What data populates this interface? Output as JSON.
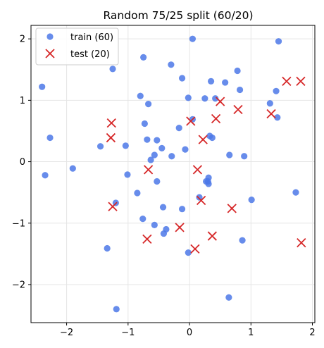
{
  "chart_data": {
    "type": "scatter",
    "title": "Random 75/25 split  (60/20)",
    "xlabel": "",
    "ylabel": "",
    "xlim": [
      -2.58,
      2.04
    ],
    "ylim": [
      -2.62,
      2.22
    ],
    "xticks": [
      -2,
      -1,
      0,
      1,
      2
    ],
    "yticks": [
      -2,
      -1,
      0,
      1,
      2
    ],
    "grid": true,
    "legend_position": "top-left",
    "series": [
      {
        "name": "train (60)",
        "marker": "circle",
        "color": "#4c78e8",
        "points": [
          [
            0.05,
            2.0
          ],
          [
            -0.3,
            1.58
          ],
          [
            -0.75,
            1.7
          ],
          [
            -1.25,
            1.51
          ],
          [
            1.45,
            1.96
          ],
          [
            -2.4,
            1.22
          ],
          [
            0.35,
            1.31
          ],
          [
            0.58,
            1.29
          ],
          [
            0.78,
            1.48
          ],
          [
            1.41,
            1.15
          ],
          [
            -0.12,
            1.36
          ],
          [
            -0.8,
            1.07
          ],
          [
            -0.67,
            0.94
          ],
          [
            -0.02,
            1.04
          ],
          [
            0.25,
            1.03
          ],
          [
            0.82,
            1.17
          ],
          [
            0.42,
            1.03
          ],
          [
            1.31,
            0.95
          ],
          [
            1.43,
            0.72
          ],
          [
            -2.27,
            0.39
          ],
          [
            -0.73,
            0.62
          ],
          [
            -0.17,
            0.55
          ],
          [
            0.05,
            0.69
          ],
          [
            0.33,
            0.42
          ],
          [
            0.37,
            0.39
          ],
          [
            -0.69,
            0.36
          ],
          [
            -0.53,
            0.35
          ],
          [
            -1.45,
            0.25
          ],
          [
            -1.04,
            0.26
          ],
          [
            -0.45,
            0.22
          ],
          [
            -0.07,
            0.2
          ],
          [
            -0.57,
            0.11
          ],
          [
            -0.63,
            0.03
          ],
          [
            -0.29,
            0.09
          ],
          [
            0.65,
            0.11
          ],
          [
            0.89,
            0.09
          ],
          [
            -1.9,
            -0.11
          ],
          [
            -2.35,
            -0.22
          ],
          [
            -1.01,
            -0.21
          ],
          [
            0.31,
            -0.26
          ],
          [
            0.27,
            -0.32
          ],
          [
            -0.53,
            -0.32
          ],
          [
            0.31,
            -0.36
          ],
          [
            1.73,
            -0.5
          ],
          [
            -0.85,
            -0.51
          ],
          [
            1.01,
            -0.62
          ],
          [
            0.16,
            -0.58
          ],
          [
            -1.2,
            -0.67
          ],
          [
            -0.12,
            -0.77
          ],
          [
            -0.43,
            -0.74
          ],
          [
            -0.76,
            -0.93
          ],
          [
            -0.57,
            -1.03
          ],
          [
            -0.38,
            -1.1
          ],
          [
            -0.42,
            -1.17
          ],
          [
            0.86,
            -1.28
          ],
          [
            -1.34,
            -1.41
          ],
          [
            -0.02,
            -1.48
          ],
          [
            0.64,
            -2.21
          ],
          [
            -1.19,
            -2.4
          ],
          [
            0.3,
            -0.32
          ]
        ]
      },
      {
        "name": "test (20)",
        "marker": "x",
        "color": "#d62728",
        "points": [
          [
            1.58,
            1.31
          ],
          [
            1.81,
            1.31
          ],
          [
            0.5,
            0.98
          ],
          [
            0.79,
            0.85
          ],
          [
            1.33,
            0.78
          ],
          [
            0.43,
            0.7
          ],
          [
            0.02,
            0.66
          ],
          [
            -1.27,
            0.63
          ],
          [
            -1.28,
            0.39
          ],
          [
            0.22,
            0.36
          ],
          [
            -0.67,
            -0.13
          ],
          [
            0.13,
            -0.13
          ],
          [
            0.19,
            -0.63
          ],
          [
            -1.25,
            -0.73
          ],
          [
            0.69,
            -0.76
          ],
          [
            -0.16,
            -1.07
          ],
          [
            0.37,
            -1.21
          ],
          [
            -0.69,
            -1.26
          ],
          [
            0.09,
            -1.42
          ],
          [
            1.82,
            -1.32
          ]
        ]
      }
    ]
  }
}
